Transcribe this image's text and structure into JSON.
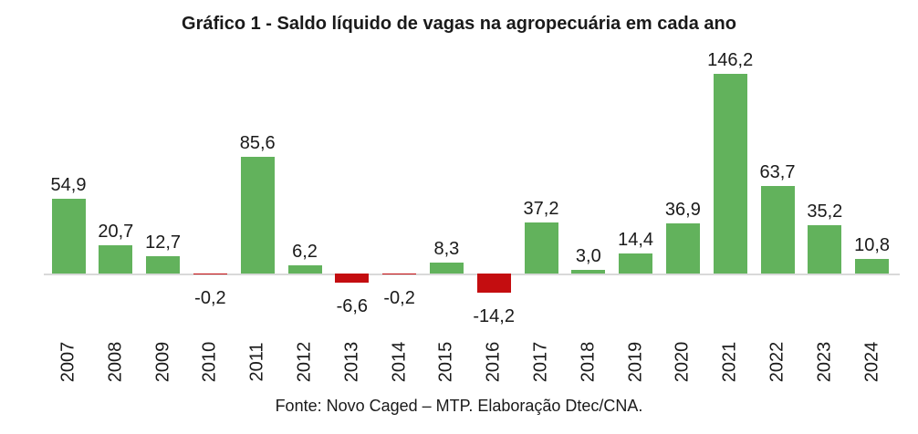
{
  "title": "Gráfico 1 - Saldo líquido de vagas na agropecuária em cada ano",
  "source_note": "Fonte: Novo Caged – MTP. Elaboração Dtec/CNA.",
  "colors": {
    "positive_bar": "#62B25C",
    "negative_bar": "#C40D10",
    "axis_line": "#D9D9D9",
    "text": "#1A1A1A",
    "background": "#FFFFFF"
  },
  "chart_data": {
    "type": "bar",
    "title": "Gráfico 1 - Saldo líquido de vagas na agropecuária em cada ano",
    "categories": [
      "2007",
      "2008",
      "2009",
      "2010",
      "2011",
      "2012",
      "2013",
      "2014",
      "2015",
      "2016",
      "2017",
      "2018",
      "2019",
      "2020",
      "2021",
      "2022",
      "2023",
      "2024"
    ],
    "values": [
      54.9,
      20.7,
      12.7,
      -0.2,
      85.6,
      6.2,
      -6.6,
      -0.2,
      8.3,
      -14.2,
      37.2,
      3.0,
      14.4,
      36.9,
      146.2,
      63.7,
      35.2,
      10.8
    ],
    "value_labels": [
      "54,9",
      "20,7",
      "12,7",
      "-0,2",
      "85,6",
      "6,2",
      "-6,6",
      "-0,2",
      "8,3",
      "-14,2",
      "37,2",
      "3,0",
      "14,4",
      "36,9",
      "146,2",
      "63,7",
      "35,2",
      "10,8"
    ],
    "xlabel": "",
    "ylabel": "",
    "ylim": [
      -20,
      160
    ],
    "grid": false,
    "legend": "none",
    "color_rule": "green bars for positive values, dark red bars for negative values",
    "source": "Fonte: Novo Caged – MTP. Elaboração Dtec/CNA."
  }
}
